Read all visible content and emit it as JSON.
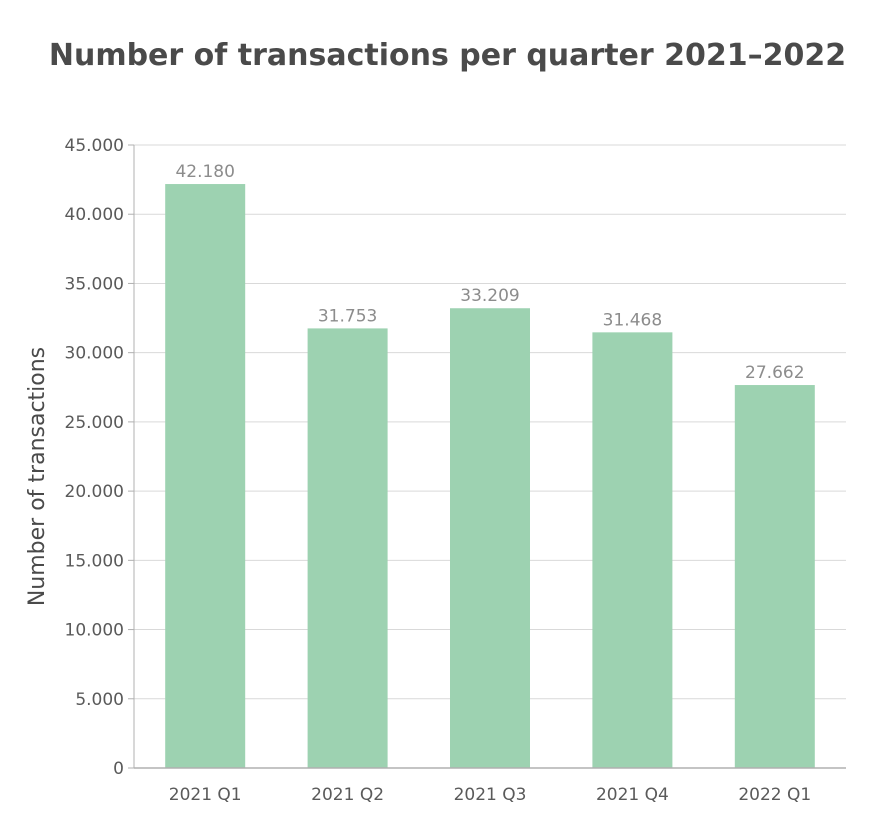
{
  "chart_data": {
    "type": "bar",
    "title": "Number of transactions per quarter 2021–2022",
    "xlabel": "",
    "ylabel": "Number of transactions",
    "categories": [
      "2021 Q1",
      "2021 Q2",
      "2021 Q3",
      "2021 Q4",
      "2022 Q1"
    ],
    "values": [
      42180,
      31753,
      33209,
      31468,
      27662
    ],
    "value_labels": [
      "42.180",
      "31.753",
      "33.209",
      "31.468",
      "27.662"
    ],
    "ylim": [
      0,
      45000
    ],
    "yticks": [
      0,
      5000,
      10000,
      15000,
      20000,
      25000,
      30000,
      35000,
      40000,
      45000
    ],
    "ytick_labels": [
      "0",
      "5.000",
      "10.000",
      "15.000",
      "20.000",
      "25.000",
      "30.000",
      "35.000",
      "40.000",
      "45.000"
    ],
    "grid": true,
    "legend": "none",
    "bar_color": "#9dd2b1",
    "grid_color": "#d9d9d9",
    "axis_color": "#b0b0b0"
  }
}
